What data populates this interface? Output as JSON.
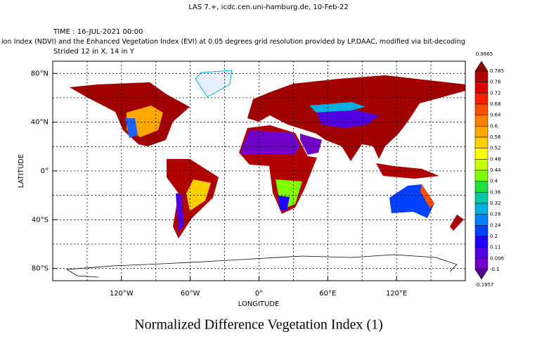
{
  "header": {
    "source": "LAS 7.+, icdc.cen.uni-hamburg.de, 10-Feb-22",
    "time": "TIME : 16-JUL-2021 00:00",
    "description": "ion Index (NDVI) and the Enhanced Vegetation Index (EVI) at 0.05 degrees grid resolution provided by LP.DAAC, modified via bit-decoding",
    "stride": "Strided 12 in X, 14 in Y"
  },
  "map": {
    "xlim": [
      -180,
      180
    ],
    "ylim": [
      -90,
      90
    ],
    "xticks": [
      {
        "value": -120,
        "label": "120°W"
      },
      {
        "value": -60,
        "label": "60°W"
      },
      {
        "value": 0,
        "label": "0°"
      },
      {
        "value": 60,
        "label": "60°E"
      },
      {
        "value": 120,
        "label": "120°E"
      }
    ],
    "yticks": [
      {
        "value": 80,
        "label": "80°N"
      },
      {
        "value": 40,
        "label": "40°N"
      },
      {
        "value": 0,
        "label": "0°"
      },
      {
        "value": -40,
        "label": "40°S"
      },
      {
        "value": -80,
        "label": "80°S"
      }
    ],
    "xlabel": "LONGITUDE",
    "ylabel": "LATITUDE",
    "grid": true
  },
  "colorbar": {
    "max": 0.9865,
    "min": -0.1957,
    "levels": [
      0.785,
      0.76,
      0.72,
      0.68,
      0.64,
      0.6,
      0.56,
      0.52,
      0.48,
      0.44,
      0.4,
      0.36,
      0.32,
      0.28,
      0.24,
      0.2,
      0.11,
      0.006,
      -0.1
    ],
    "colors": [
      "#8b0000",
      "#b00000",
      "#dd0000",
      "#ff2000",
      "#ff5000",
      "#ff8000",
      "#ffa800",
      "#ffd000",
      "#ffff00",
      "#c8ff00",
      "#80ff00",
      "#20e040",
      "#00c8a0",
      "#00b0e0",
      "#0080ff",
      "#0040ff",
      "#2000ff",
      "#5000e0",
      "#7000c8",
      "#500090"
    ]
  },
  "title": "Normalized Difference Vegetation Index (1)"
}
